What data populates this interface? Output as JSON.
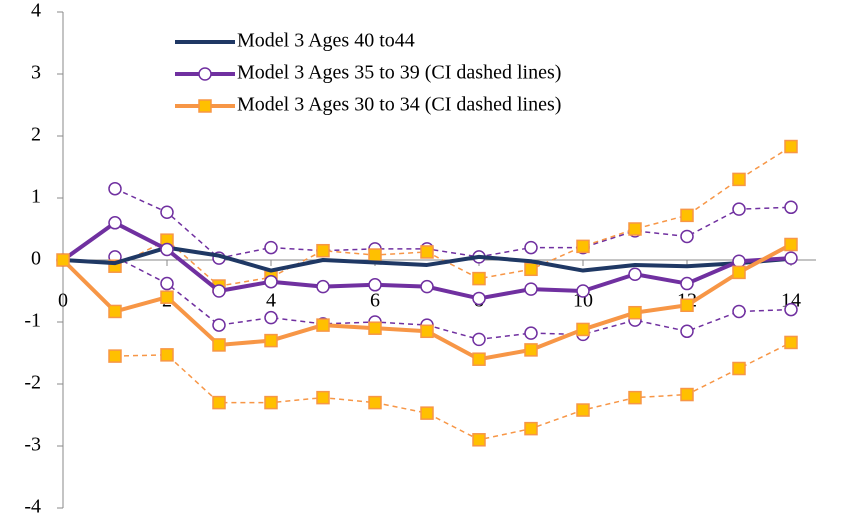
{
  "chart_data": {
    "type": "line",
    "x": [
      0,
      1,
      2,
      3,
      4,
      5,
      6,
      7,
      8,
      9,
      10,
      11,
      12,
      13,
      14
    ],
    "xlim": [
      0,
      14
    ],
    "xticks": [
      0,
      2,
      4,
      6,
      8,
      10,
      12,
      14
    ],
    "ylim": [
      -4,
      4
    ],
    "yticks": [
      -4,
      -3,
      -2,
      -1,
      0,
      1,
      2,
      3,
      4
    ],
    "series": [
      {
        "name": "Model 3 Ages 40 to44",
        "color": "#1f3864",
        "marker": null,
        "values": [
          0,
          -0.05,
          0.2,
          0.07,
          -0.17,
          0.0,
          -0.04,
          -0.08,
          0.05,
          -0.02,
          -0.17,
          -0.08,
          -0.1,
          -0.05,
          0.02
        ]
      },
      {
        "name": "Model 3 Ages 35 to 39 (CI dashed lines)",
        "color": "#7030a0",
        "marker": "circle",
        "values": [
          0,
          0.6,
          0.17,
          -0.5,
          -0.35,
          -0.43,
          -0.4,
          -0.43,
          -0.62,
          -0.47,
          -0.5,
          -0.23,
          -0.38,
          -0.02,
          0.03
        ],
        "ci_upper": [
          null,
          1.15,
          0.77,
          0.03,
          0.2,
          0.15,
          0.18,
          0.18,
          0.05,
          0.2,
          0.2,
          0.47,
          0.38,
          0.82,
          0.85
        ],
        "ci_lower": [
          null,
          0.05,
          -0.38,
          -1.05,
          -0.93,
          -1.03,
          -1.0,
          -1.05,
          -1.28,
          -1.18,
          -1.2,
          -0.97,
          -1.15,
          -0.83,
          -0.8
        ]
      },
      {
        "name": "Model 3 Ages 30 to 34 (CI dashed lines)",
        "color": "#f79646",
        "marker": "square",
        "values": [
          0,
          -0.83,
          -0.6,
          -1.37,
          -1.3,
          -1.05,
          -1.1,
          -1.15,
          -1.6,
          -1.45,
          -1.12,
          -0.85,
          -0.73,
          -0.2,
          0.25
        ],
        "ci_upper": [
          null,
          -0.1,
          0.32,
          -0.42,
          -0.28,
          0.15,
          0.08,
          0.13,
          -0.3,
          -0.15,
          0.22,
          0.5,
          0.72,
          1.3,
          1.83
        ],
        "ci_lower": [
          null,
          -1.55,
          -1.53,
          -2.3,
          -2.3,
          -2.22,
          -2.3,
          -2.47,
          -2.9,
          -2.72,
          -2.42,
          -2.22,
          -2.17,
          -1.75,
          -1.33
        ]
      }
    ]
  }
}
